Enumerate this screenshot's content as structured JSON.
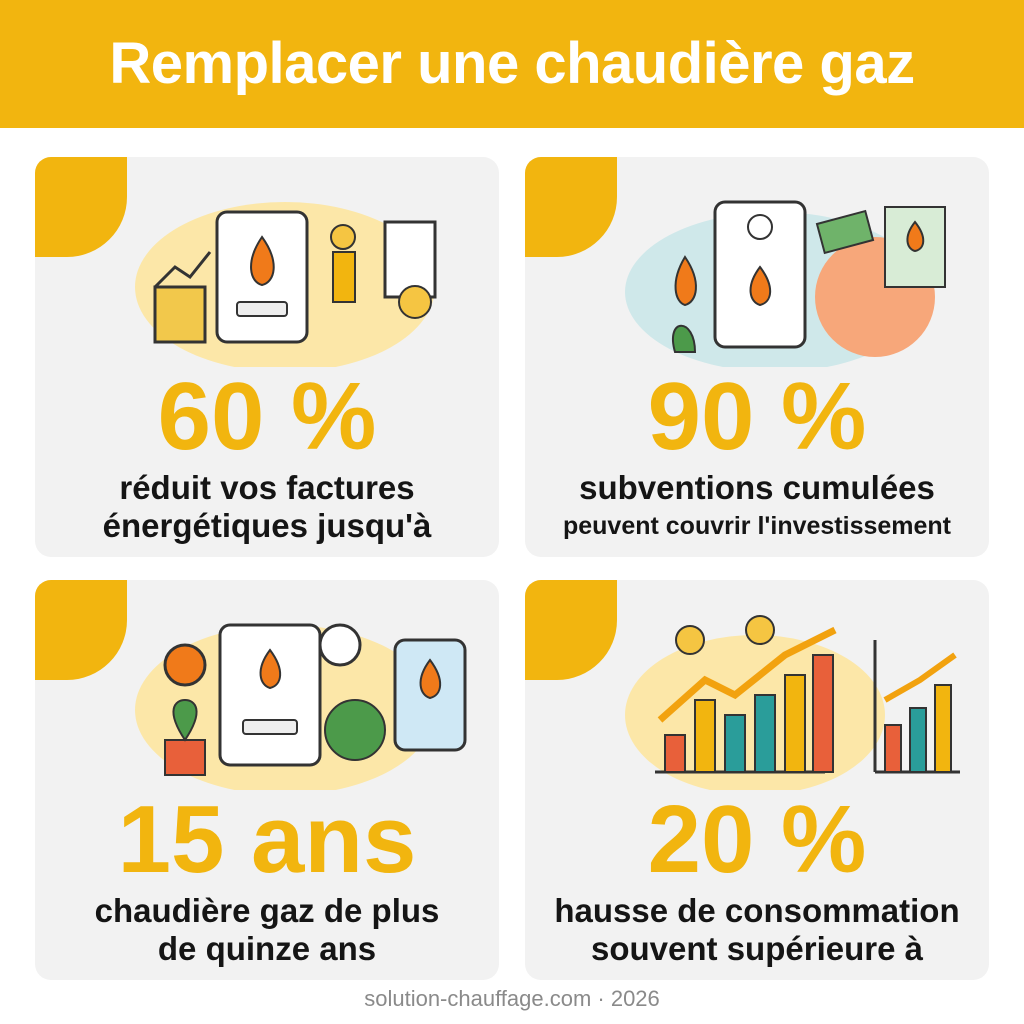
{
  "header": {
    "title": "Remplacer une chaudière gaz"
  },
  "cards": [
    {
      "stat": "60 %",
      "description": [
        "réduit vos factures",
        "énergétiques jusqu'à"
      ]
    },
    {
      "stat": "90 %",
      "description": [
        "subventions cumulées",
        "peuvent couvrir l'investissement"
      ]
    },
    {
      "stat": "15 ans",
      "description": [
        "chaudière gaz de plus",
        "de quinze ans"
      ]
    },
    {
      "stat": "20 %",
      "description": [
        "hausse de consommation",
        "souvent supérieure à"
      ]
    }
  ],
  "footer": {
    "text": "solution-chauffage.com · 2026"
  }
}
